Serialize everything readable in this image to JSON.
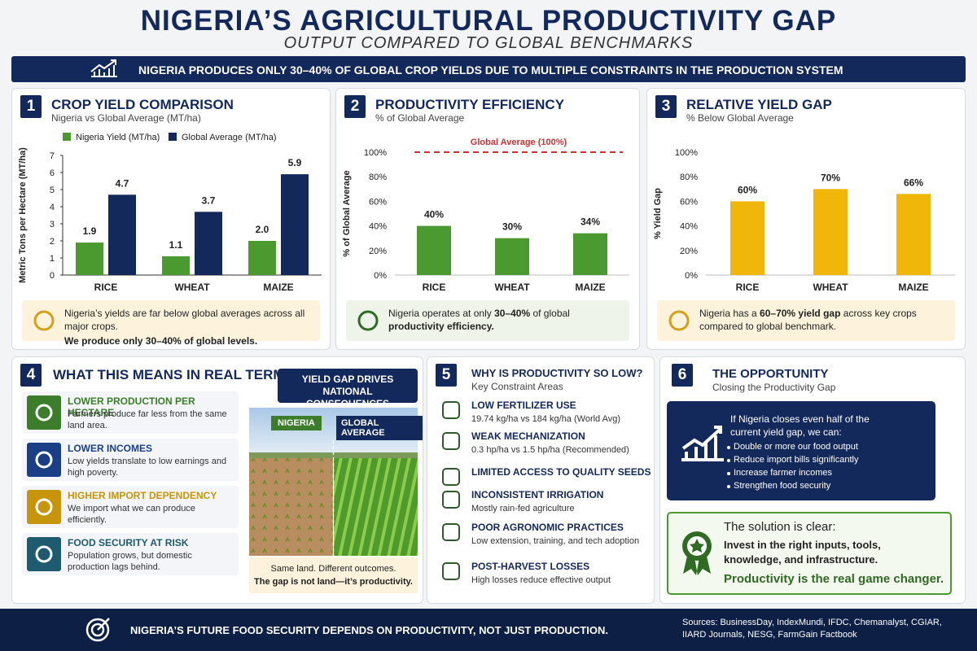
{
  "header": {
    "title": "NIGERIA’S AGRICULTURAL PRODUCTIVITY GAP",
    "subtitle": "OUTPUT COMPARED TO GLOBAL BENCHMARKS",
    "banner": "NIGERIA PRODUCES ONLY 30–40% OF GLOBAL CROP YIELDS DUE TO MULTIPLE CONSTRAINTS IN THE PRODUCTION SYSTEM"
  },
  "chart_data": [
    {
      "type": "bar",
      "badge": "1",
      "title": "CROP YIELD COMPARISON",
      "subtitle": "Nigeria vs Global Average (MT/ha)",
      "y_label": "Metric Tons per Hectare (MT/ha)",
      "categories": [
        "RICE",
        "WHEAT",
        "MAIZE"
      ],
      "series": [
        {
          "name": "Nigeria Yield (MT/ha)",
          "color": "#4b9a2f",
          "values": [
            1.9,
            1.1,
            2.0
          ],
          "value_labels": [
            "1.9",
            "1.1",
            "2.0"
          ]
        },
        {
          "name": "Global Average (MT/ha)",
          "color": "#13285b",
          "values": [
            4.7,
            3.7,
            5.9
          ],
          "value_labels": [
            "4.7",
            "3.7",
            "5.9"
          ]
        }
      ],
      "ylim": [
        0,
        7
      ],
      "yticks": [
        0,
        1,
        2,
        3,
        4,
        5,
        6,
        7
      ],
      "grid": false,
      "legend": "top",
      "note": [
        {
          "text": "Nigeria’s yields are far below global averages across all major crops.",
          "bold": false
        },
        {
          "text": "We produce only 30–40% of global levels.",
          "bold": true,
          "block": true
        }
      ]
    },
    {
      "type": "bar",
      "badge": "2",
      "title": "PRODUCTIVITY EFFICIENCY",
      "subtitle": "% of Global Average",
      "y_label": "% of Global Average",
      "categories": [
        "RICE",
        "WHEAT",
        "MAIZE"
      ],
      "values": [
        40,
        30,
        34
      ],
      "value_labels": [
        "40%",
        "30%",
        "34%"
      ],
      "color": "#4b9a2f",
      "ylim": [
        0,
        100
      ],
      "yticks": [
        {
          "value": 0,
          "label": "0%"
        },
        {
          "value": 20,
          "label": "20%"
        },
        {
          "value": 40,
          "label": "40%"
        },
        {
          "value": 60,
          "label": "60%"
        },
        {
          "value": 80,
          "label": "80%"
        },
        {
          "value": 100,
          "label": "100%"
        }
      ],
      "grid": false,
      "reference_line": {
        "value": 100,
        "label": "Global Average (100%)",
        "color": "#d32f2f"
      },
      "note": [
        {
          "text": "Nigeria operates at only ",
          "bold": false
        },
        {
          "text": "30–40%",
          "bold": true
        },
        {
          "text": " of global ",
          "bold": false
        },
        {
          "text": "productivity efficiency.",
          "bold": true
        }
      ]
    },
    {
      "type": "bar",
      "badge": "3",
      "title": "RELATIVE YIELD GAP",
      "subtitle": "% Below Global Average",
      "y_label": "% Yield Gap",
      "categories": [
        "RICE",
        "WHEAT",
        "MAIZE"
      ],
      "values": [
        60,
        70,
        66
      ],
      "value_labels": [
        "60%",
        "70%",
        "66%"
      ],
      "color": "#f0b70a",
      "ylim": [
        0,
        100
      ],
      "yticks": [
        {
          "value": 0,
          "label": "0%"
        },
        {
          "value": 20,
          "label": "20%"
        },
        {
          "value": 40,
          "label": "40%"
        },
        {
          "value": 60,
          "label": "60%"
        },
        {
          "value": 80,
          "label": "80%"
        },
        {
          "value": 100,
          "label": "100%"
        }
      ],
      "grid": false,
      "note": [
        {
          "text": "Nigeria has a ",
          "bold": false
        },
        {
          "text": "60–70% yield gap",
          "bold": true
        },
        {
          "text": " across key crops compared to global benchmark.",
          "bold": false
        }
      ]
    }
  ],
  "consequences": {
    "badge": "4",
    "title": "WHAT THIS MEANS IN REAL TERMS",
    "items": [
      {
        "title": "LOWER PRODUCTION PER HECTARE",
        "text": "Farmers produce far less from the same land area.",
        "color": "#3b7d2a"
      },
      {
        "title": "LOWER INCOMES",
        "text": "Low yields translate to low earnings and high poverty.",
        "color": "#1b3f87"
      },
      {
        "title": "HIGHER IMPORT DEPENDENCY",
        "text": "We import what we can produce efficiently.",
        "color": "#c6950c"
      },
      {
        "title": "FOOD SECURITY AT RISK",
        "text": "Population grows, but domestic production lags behind.",
        "color": "#1e5b6e"
      }
    ],
    "callout": "YIELD GAP DRIVES NATIONAL CONSEQUENCES",
    "image_labels": [
      "NIGERIA",
      "GLOBAL AVERAGE"
    ],
    "caption": "Same land. Different outcomes.",
    "caption_bold": "The gap is not land—it’s productivity."
  },
  "constraints": {
    "badge": "5",
    "title": "WHY IS PRODUCTIVITY SO LOW?",
    "subtitle": "Key Constraint Areas",
    "items": [
      {
        "title": "LOW FERTILIZER USE",
        "detail": "19.74 kg/ha vs 184 kg/ha (World Avg)"
      },
      {
        "title": "WEAK MECHANIZATION",
        "detail": "0.3 hp/ha vs 1.5 hp/ha (Recommended)"
      },
      {
        "title": "LIMITED ACCESS TO QUALITY SEEDS"
      },
      {
        "title": "INCONSISTENT IRRIGATION",
        "detail": "Mostly rain-fed agriculture"
      },
      {
        "title": "POOR AGRONOMIC PRACTICES",
        "detail": "Low extension, training, and tech adoption"
      },
      {
        "title": "POST-HARVEST LOSSES",
        "detail": "High losses reduce effective output"
      }
    ]
  },
  "opportunity": {
    "badge": "6",
    "title": "THE OPPORTUNITY",
    "subtitle": "Closing the Productivity Gap",
    "intro": "If Nigeria closes even half of the current yield gap, we can:",
    "benefits": [
      "Double or more our food output",
      "Reduce import bills significantly",
      "Increase farmer incomes",
      "Strengthen food security"
    ],
    "solution": {
      "lead": "The solution is clear:",
      "text": "Invest in the right inputs, tools, knowledge, and infrastructure.",
      "closing": "Productivity is the real game changer."
    }
  },
  "footer": {
    "message": "NIGERIA’S FUTURE FOOD SECURITY DEPENDS ON PRODUCTIVITY, NOT JUST PRODUCTION.",
    "sources": "Sources: BusinessDay, IndexMundi, IFDC, Chemanalyst, CGIAR, IIARD Journals, NESG, FarmGain Factbook"
  }
}
